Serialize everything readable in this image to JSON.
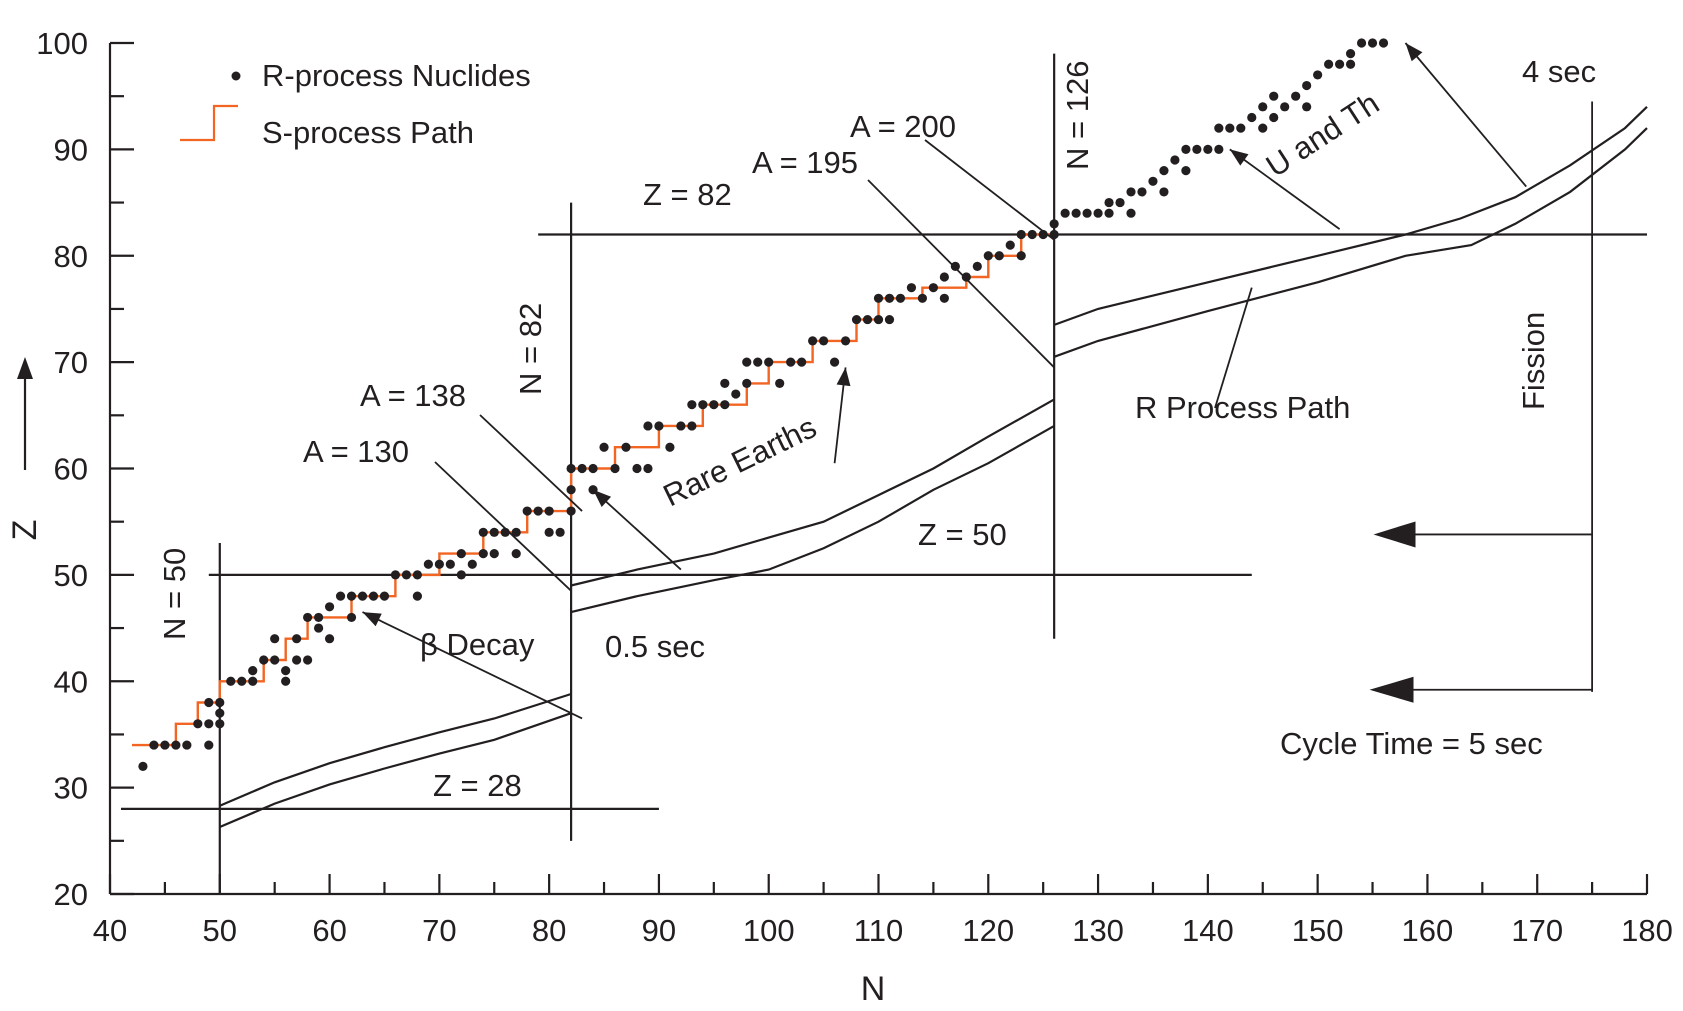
{
  "chart_data": {
    "type": "scatter",
    "xlabel": "N",
    "ylabel": "Z",
    "xlim": [
      40,
      180
    ],
    "ylim": [
      20,
      100
    ],
    "x_ticks": [
      40,
      50,
      60,
      70,
      80,
      90,
      100,
      110,
      120,
      130,
      140,
      150,
      160,
      170,
      180
    ],
    "y_ticks": [
      20,
      30,
      40,
      50,
      60,
      70,
      80,
      90,
      100
    ],
    "legend": {
      "position": "top-left",
      "entries": [
        {
          "name": "R-process Nuclides",
          "marker": "dot",
          "color": "#231f20"
        },
        {
          "name": "S-process Path",
          "marker": "step-line",
          "color": "#f26522"
        }
      ]
    },
    "r_process_nuclides": [
      [
        43,
        32
      ],
      [
        44,
        34
      ],
      [
        45,
        34
      ],
      [
        46,
        34
      ],
      [
        47,
        34
      ],
      [
        48,
        36
      ],
      [
        49,
        34
      ],
      [
        49,
        36
      ],
      [
        49,
        38
      ],
      [
        50,
        37
      ],
      [
        50,
        38
      ],
      [
        50,
        36
      ],
      [
        51,
        40
      ],
      [
        52,
        40
      ],
      [
        53,
        40
      ],
      [
        53,
        41
      ],
      [
        54,
        42
      ],
      [
        55,
        42
      ],
      [
        55,
        44
      ],
      [
        56,
        41
      ],
      [
        56,
        40
      ],
      [
        57,
        42
      ],
      [
        57,
        44
      ],
      [
        58,
        42
      ],
      [
        58,
        46
      ],
      [
        59,
        45
      ],
      [
        59,
        46
      ],
      [
        60,
        47
      ],
      [
        60,
        44
      ],
      [
        61,
        48
      ],
      [
        62,
        46
      ],
      [
        62,
        48
      ],
      [
        63,
        48
      ],
      [
        64,
        48
      ],
      [
        65,
        48
      ],
      [
        66,
        50
      ],
      [
        67,
        50
      ],
      [
        68,
        50
      ],
      [
        68,
        48
      ],
      [
        69,
        51
      ],
      [
        70,
        51
      ],
      [
        71,
        51
      ],
      [
        72,
        50
      ],
      [
        72,
        52
      ],
      [
        73,
        51
      ],
      [
        74,
        52
      ],
      [
        74,
        54
      ],
      [
        75,
        52
      ],
      [
        75,
        54
      ],
      [
        76,
        54
      ],
      [
        77,
        52
      ],
      [
        77,
        54
      ],
      [
        78,
        56
      ],
      [
        79,
        56
      ],
      [
        80,
        56
      ],
      [
        80,
        54
      ],
      [
        81,
        54
      ],
      [
        82,
        56
      ],
      [
        82,
        58
      ],
      [
        82,
        60
      ],
      [
        83,
        60
      ],
      [
        84,
        60
      ],
      [
        84,
        58
      ],
      [
        85,
        62
      ],
      [
        86,
        60
      ],
      [
        87,
        62
      ],
      [
        88,
        60
      ],
      [
        89,
        60
      ],
      [
        89,
        64
      ],
      [
        90,
        64
      ],
      [
        91,
        62
      ],
      [
        92,
        64
      ],
      [
        93,
        64
      ],
      [
        93,
        66
      ],
      [
        94,
        66
      ],
      [
        95,
        66
      ],
      [
        96,
        66
      ],
      [
        96,
        68
      ],
      [
        97,
        67
      ],
      [
        98,
        68
      ],
      [
        98,
        70
      ],
      [
        99,
        70
      ],
      [
        100,
        70
      ],
      [
        101,
        68
      ],
      [
        102,
        70
      ],
      [
        103,
        70
      ],
      [
        104,
        72
      ],
      [
        105,
        72
      ],
      [
        106,
        70
      ],
      [
        107,
        72
      ],
      [
        108,
        74
      ],
      [
        109,
        74
      ],
      [
        110,
        76
      ],
      [
        110,
        74
      ],
      [
        111,
        74
      ],
      [
        111,
        76
      ],
      [
        112,
        76
      ],
      [
        113,
        77
      ],
      [
        114,
        76
      ],
      [
        115,
        77
      ],
      [
        116,
        78
      ],
      [
        116,
        76
      ],
      [
        117,
        79
      ],
      [
        118,
        78
      ],
      [
        119,
        79
      ],
      [
        120,
        80
      ],
      [
        121,
        80
      ],
      [
        122,
        81
      ],
      [
        123,
        82
      ],
      [
        123,
        80
      ],
      [
        124,
        82
      ],
      [
        125,
        82
      ],
      [
        126,
        83
      ],
      [
        126,
        82
      ],
      [
        127,
        84
      ],
      [
        128,
        84
      ],
      [
        129,
        84
      ],
      [
        130,
        84
      ],
      [
        131,
        85
      ],
      [
        131,
        84
      ],
      [
        132,
        85
      ],
      [
        133,
        86
      ],
      [
        133,
        84
      ],
      [
        134,
        86
      ],
      [
        135,
        87
      ],
      [
        136,
        88
      ],
      [
        136,
        86
      ],
      [
        137,
        89
      ],
      [
        138,
        90
      ],
      [
        138,
        88
      ],
      [
        139,
        90
      ],
      [
        140,
        90
      ],
      [
        141,
        90
      ],
      [
        141,
        92
      ],
      [
        142,
        92
      ],
      [
        143,
        92
      ],
      [
        144,
        93
      ],
      [
        145,
        94
      ],
      [
        145,
        92
      ],
      [
        146,
        95
      ],
      [
        146,
        93
      ],
      [
        147,
        94
      ],
      [
        148,
        95
      ],
      [
        149,
        96
      ],
      [
        149,
        94
      ],
      [
        150,
        97
      ],
      [
        151,
        98
      ],
      [
        152,
        98
      ],
      [
        153,
        98
      ],
      [
        153,
        99
      ],
      [
        154,
        100
      ],
      [
        155,
        100
      ],
      [
        156,
        100
      ]
    ],
    "s_process_path": [
      [
        42,
        34
      ],
      [
        46,
        34
      ],
      [
        46,
        36
      ],
      [
        48,
        36
      ],
      [
        48,
        38
      ],
      [
        50,
        38
      ],
      [
        50,
        40
      ],
      [
        54,
        40
      ],
      [
        54,
        42
      ],
      [
        56,
        42
      ],
      [
        56,
        44
      ],
      [
        58,
        44
      ],
      [
        58,
        46
      ],
      [
        62,
        46
      ],
      [
        62,
        48
      ],
      [
        66,
        48
      ],
      [
        66,
        50
      ],
      [
        70,
        50
      ],
      [
        70,
        52
      ],
      [
        74,
        52
      ],
      [
        74,
        54
      ],
      [
        78,
        54
      ],
      [
        78,
        56
      ],
      [
        82,
        56
      ],
      [
        82,
        60
      ],
      [
        86,
        60
      ],
      [
        86,
        62
      ],
      [
        90,
        62
      ],
      [
        90,
        64
      ],
      [
        94,
        64
      ],
      [
        94,
        66
      ],
      [
        98,
        66
      ],
      [
        98,
        68
      ],
      [
        100,
        68
      ],
      [
        100,
        70
      ],
      [
        104,
        70
      ],
      [
        104,
        72
      ],
      [
        108,
        72
      ],
      [
        108,
        74
      ],
      [
        110,
        74
      ],
      [
        110,
        76
      ],
      [
        114,
        76
      ],
      [
        114,
        77
      ],
      [
        118,
        77
      ],
      [
        118,
        78
      ],
      [
        120,
        78
      ],
      [
        120,
        80
      ],
      [
        123,
        80
      ],
      [
        123,
        82
      ],
      [
        126,
        82
      ]
    ],
    "magic_lines": [
      {
        "label": "N = 50",
        "orientation": "vertical",
        "at": 50,
        "from": 20,
        "to": 53
      },
      {
        "label": "N = 82",
        "orientation": "vertical",
        "at": 82,
        "from": 25,
        "to": 85
      },
      {
        "label": "N = 126",
        "orientation": "vertical",
        "at": 126,
        "from": 44,
        "to": 99
      },
      {
        "label": "Z = 28",
        "orientation": "horizontal",
        "at": 28,
        "from": 41,
        "to": 90
      },
      {
        "label": "Z = 50",
        "orientation": "horizontal",
        "at": 50,
        "from": 49,
        "to": 144
      },
      {
        "label": "Z = 82",
        "orientation": "horizontal",
        "at": 82,
        "from": 79,
        "to": 180
      }
    ],
    "r_process_path": {
      "label": "R Process Path",
      "segments": [
        {
          "upper": [
            [
              50,
              28.3
            ],
            [
              55,
              30.5
            ],
            [
              60,
              32.3
            ],
            [
              65,
              33.8
            ],
            [
              70,
              35.2
            ],
            [
              75,
              36.5
            ],
            [
              82,
              38.8
            ]
          ],
          "lower": [
            [
              50,
              26.3
            ],
            [
              55,
              28.5
            ],
            [
              60,
              30.3
            ],
            [
              65,
              31.8
            ],
            [
              70,
              33.2
            ],
            [
              75,
              34.5
            ],
            [
              82,
              37.0
            ]
          ]
        },
        {
          "upper": [
            [
              82,
              49.0
            ],
            [
              88,
              50.5
            ],
            [
              95,
              52.0
            ],
            [
              100,
              53.5
            ],
            [
              105,
              55.0
            ],
            [
              110,
              57.5
            ],
            [
              115,
              60.0
            ],
            [
              120,
              63.0
            ],
            [
              126,
              66.5
            ]
          ],
          "lower": [
            [
              82,
              46.5
            ],
            [
              88,
              48.0
            ],
            [
              95,
              49.5
            ],
            [
              100,
              50.5
            ],
            [
              105,
              52.5
            ],
            [
              110,
              55.0
            ],
            [
              115,
              58.0
            ],
            [
              120,
              60.5
            ],
            [
              126,
              64.0
            ]
          ]
        },
        {
          "upper": [
            [
              126,
              73.5
            ],
            [
              130,
              75.0
            ],
            [
              140,
              77.5
            ],
            [
              150,
              80.0
            ],
            [
              158,
              82.0
            ],
            [
              163,
              83.5
            ],
            [
              168,
              85.5
            ],
            [
              173,
              88.5
            ],
            [
              178,
              92.0
            ],
            [
              180,
              94.0
            ]
          ],
          "lower": [
            [
              126,
              70.5
            ],
            [
              130,
              72.0
            ],
            [
              140,
              74.8
            ],
            [
              150,
              77.5
            ],
            [
              158,
              80.0
            ],
            [
              164,
              81.0
            ],
            [
              168,
              83.0
            ],
            [
              173,
              86.0
            ],
            [
              178,
              90.0
            ],
            [
              180,
              92.0
            ]
          ]
        }
      ]
    },
    "annotations": [
      {
        "text": "β Decay",
        "arrow_from": [
          83,
          36.5
        ],
        "arrow_to": [
          63,
          46.5
        ]
      },
      {
        "text": "Rare Earths",
        "arrow_from": [
          106,
          60.5
        ],
        "arrow_to": [
          107,
          69.5
        ]
      },
      {
        "text": "U and Th",
        "arrow_from": [
          152,
          82.5
        ],
        "arrow_to": [
          142,
          90
        ]
      },
      {
        "text": "A = 130",
        "to": [
          82,
          48.5
        ]
      },
      {
        "text": "A = 138",
        "to": [
          83,
          56
        ]
      },
      {
        "text": "A = 195",
        "to": [
          126,
          69.5
        ]
      },
      {
        "text": "A = 200",
        "to": [
          126,
          81.5
        ]
      },
      {
        "text": "0.5 sec",
        "arrow_from": [
          92,
          50.5
        ],
        "arrow_to": [
          84,
          58
        ]
      },
      {
        "text": "4 sec",
        "arrow_from": [
          169,
          86.5
        ],
        "arrow_to": [
          158,
          100
        ]
      },
      {
        "text": "Fission"
      },
      {
        "text": "Cycle Time = 5 sec",
        "bracket_at": 175,
        "arrows_to": 156
      }
    ],
    "labels": {
      "legend_nuclides": "R-process Nuclides",
      "legend_s_path": "S-process Path",
      "n50": "N = 50",
      "n82": "N = 82",
      "n126": "N = 126",
      "z28": "Z = 28",
      "z50": "Z = 50",
      "z82": "Z = 82",
      "a130": "A = 130",
      "a138": "A = 138",
      "a195": "A = 195",
      "a200": "A = 200",
      "beta_decay": "β Decay",
      "rare_earths": "Rare Earths",
      "u_and_th": "U and Th",
      "r_process_path": "R Process Path",
      "half_sec": "0.5 sec",
      "four_sec": "4 sec",
      "fission": "Fission",
      "cycle_time": "Cycle Time = 5 sec"
    },
    "grid": false
  }
}
